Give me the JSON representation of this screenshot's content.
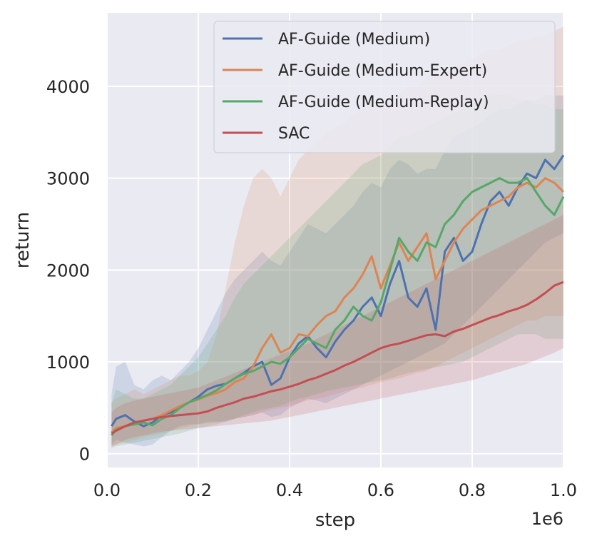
{
  "chart_data": {
    "type": "line",
    "title": "",
    "xlabel": "step",
    "ylabel": "return",
    "x_scale_label": "1e6",
    "xlim": [
      0,
      1.0
    ],
    "ylim": [
      -150,
      4800
    ],
    "xticks": [
      0.0,
      0.2,
      0.4,
      0.6,
      0.8,
      1.0
    ],
    "xtick_labels": [
      "0.0",
      "0.2",
      "0.4",
      "0.6",
      "0.8",
      "1.0"
    ],
    "yticks": [
      0,
      1000,
      2000,
      3000,
      4000
    ],
    "ytick_labels": [
      "0",
      "1000",
      "2000",
      "3000",
      "4000"
    ],
    "grid": true,
    "legend_position": "top-right",
    "colors": {
      "background": "#eaeaf2",
      "grid": "#ffffff",
      "blue": "#4c72b0",
      "orange": "#dd8452",
      "green": "#55a868",
      "red": "#c44e52"
    },
    "series": [
      {
        "name": "AF-Guide (Medium)",
        "color": "#4c72b0",
        "x": [
          0.01,
          0.02,
          0.04,
          0.06,
          0.08,
          0.1,
          0.12,
          0.14,
          0.16,
          0.18,
          0.2,
          0.22,
          0.24,
          0.26,
          0.28,
          0.3,
          0.32,
          0.34,
          0.36,
          0.38,
          0.4,
          0.42,
          0.44,
          0.46,
          0.48,
          0.5,
          0.52,
          0.54,
          0.56,
          0.58,
          0.6,
          0.62,
          0.64,
          0.66,
          0.68,
          0.7,
          0.72,
          0.74,
          0.76,
          0.78,
          0.8,
          0.82,
          0.84,
          0.86,
          0.88,
          0.9,
          0.92,
          0.94,
          0.96,
          0.98,
          1.0
        ],
        "y": [
          300,
          380,
          420,
          350,
          300,
          340,
          420,
          450,
          500,
          560,
          620,
          700,
          740,
          760,
          820,
          880,
          950,
          1000,
          750,
          820,
          1050,
          1200,
          1280,
          1150,
          1050,
          1220,
          1350,
          1450,
          1600,
          1700,
          1500,
          1850,
          2100,
          1700,
          1600,
          1800,
          1350,
          2200,
          2350,
          2100,
          2200,
          2500,
          2750,
          2850,
          2700,
          2900,
          3050,
          3000,
          3200,
          3100,
          3250
        ],
        "band_upper": [
          650,
          950,
          1000,
          750,
          700,
          800,
          850,
          800,
          900,
          1000,
          1150,
          1350,
          1550,
          1750,
          1900,
          2000,
          2100,
          2200,
          2100,
          2050,
          2200,
          2350,
          2500,
          2450,
          2400,
          2500,
          2600,
          2700,
          2850,
          2950,
          2900,
          3100,
          3200,
          3150,
          3050,
          3100,
          3100,
          3300,
          3450,
          3500,
          3550,
          3600,
          3700,
          3750,
          3750,
          3800,
          3850,
          3850,
          3900,
          3900,
          3900
        ],
        "band_lower": [
          100,
          150,
          120,
          100,
          80,
          100,
          180,
          250,
          300,
          320,
          320,
          350,
          350,
          350,
          380,
          400,
          420,
          450,
          400,
          420,
          500,
          550,
          600,
          580,
          550,
          600,
          650,
          700,
          750,
          800,
          850,
          900,
          950,
          1000,
          1050,
          1100,
          1150,
          1200,
          1300,
          1400,
          1500,
          1600,
          1700,
          1800,
          1900,
          2000,
          2100,
          2200,
          2300,
          2350,
          2400
        ]
      },
      {
        "name": "AF-Guide (Medium-Expert)",
        "color": "#dd8452",
        "x": [
          0.01,
          0.02,
          0.04,
          0.06,
          0.08,
          0.1,
          0.12,
          0.14,
          0.16,
          0.18,
          0.2,
          0.22,
          0.24,
          0.26,
          0.28,
          0.3,
          0.32,
          0.34,
          0.36,
          0.38,
          0.4,
          0.42,
          0.44,
          0.46,
          0.48,
          0.5,
          0.52,
          0.54,
          0.56,
          0.58,
          0.6,
          0.62,
          0.64,
          0.66,
          0.68,
          0.7,
          0.72,
          0.74,
          0.76,
          0.78,
          0.8,
          0.82,
          0.84,
          0.86,
          0.88,
          0.9,
          0.92,
          0.94,
          0.96,
          0.98,
          1.0
        ],
        "y": [
          230,
          280,
          300,
          330,
          360,
          380,
          420,
          470,
          520,
          560,
          590,
          630,
          660,
          700,
          780,
          820,
          950,
          1150,
          1300,
          1100,
          1150,
          1300,
          1280,
          1400,
          1500,
          1550,
          1700,
          1800,
          1950,
          2150,
          1800,
          2050,
          2300,
          2100,
          2250,
          2400,
          1900,
          2100,
          2300,
          2450,
          2550,
          2650,
          2700,
          2750,
          2800,
          2900,
          2950,
          2900,
          3000,
          2950,
          2850
        ],
        "band_upper": [
          550,
          600,
          650,
          700,
          650,
          700,
          750,
          800,
          850,
          850,
          900,
          1000,
          1300,
          1800,
          2300,
          2700,
          3000,
          3100,
          3000,
          2800,
          3000,
          3200,
          3300,
          3400,
          3500,
          3550,
          3600,
          3700,
          3750,
          3800,
          3800,
          3850,
          3900,
          4000,
          4000,
          4100,
          4100,
          4150,
          4200,
          4250,
          4300,
          4350,
          4400,
          4400,
          4450,
          4500,
          4500,
          4550,
          4550,
          4600,
          4650
        ],
        "band_lower": [
          80,
          100,
          120,
          150,
          180,
          200,
          220,
          250,
          280,
          300,
          320,
          330,
          340,
          360,
          380,
          400,
          420,
          450,
          480,
          500,
          520,
          550,
          580,
          600,
          620,
          650,
          680,
          700,
          720,
          750,
          780,
          800,
          820,
          850,
          880,
          900,
          950,
          1000,
          1050,
          1100,
          1150,
          1200,
          1250,
          1300,
          1350,
          1400,
          1450,
          1450,
          1500,
          1500,
          1500
        ]
      },
      {
        "name": "AF-Guide (Medium-Replay)",
        "color": "#55a868",
        "x": [
          0.01,
          0.02,
          0.04,
          0.06,
          0.08,
          0.1,
          0.12,
          0.14,
          0.16,
          0.18,
          0.2,
          0.22,
          0.24,
          0.26,
          0.28,
          0.3,
          0.32,
          0.34,
          0.36,
          0.38,
          0.4,
          0.42,
          0.44,
          0.46,
          0.48,
          0.5,
          0.52,
          0.54,
          0.56,
          0.58,
          0.6,
          0.62,
          0.64,
          0.66,
          0.68,
          0.7,
          0.72,
          0.74,
          0.76,
          0.78,
          0.8,
          0.82,
          0.84,
          0.86,
          0.88,
          0.9,
          0.92,
          0.94,
          0.96,
          0.98,
          1.0
        ],
        "y": [
          200,
          260,
          300,
          320,
          340,
          310,
          380,
          420,
          500,
          560,
          600,
          640,
          690,
          760,
          820,
          870,
          900,
          950,
          1000,
          980,
          1050,
          1150,
          1250,
          1200,
          1150,
          1350,
          1450,
          1600,
          1500,
          1450,
          1650,
          2000,
          2350,
          2200,
          2100,
          2300,
          2250,
          2500,
          2600,
          2750,
          2850,
          2900,
          2950,
          3000,
          2950,
          2950,
          3000,
          2850,
          2700,
          2600,
          2800
        ],
        "band_upper": [
          550,
          700,
          650,
          600,
          600,
          650,
          700,
          750,
          850,
          950,
          1050,
          1200,
          1350,
          1500,
          1700,
          1850,
          1950,
          2050,
          2150,
          2250,
          2350,
          2450,
          2550,
          2650,
          2750,
          2850,
          2950,
          3050,
          3150,
          3200,
          3250,
          3350,
          3450,
          3450,
          3500,
          3550,
          3600,
          3650,
          3700,
          3750,
          3800,
          3850,
          3900,
          3900,
          3900,
          3850,
          3850,
          3800,
          3800,
          3750,
          3750
        ],
        "band_lower": [
          60,
          80,
          100,
          120,
          140,
          160,
          180,
          200,
          220,
          250,
          280,
          300,
          320,
          350,
          380,
          420,
          450,
          480,
          500,
          520,
          560,
          600,
          620,
          650,
          680,
          700,
          720,
          740,
          760,
          780,
          800,
          820,
          850,
          880,
          900,
          920,
          940,
          960,
          980,
          1000,
          1050,
          1100,
          1150,
          1200,
          1250,
          1300,
          1300,
          1300,
          1250,
          1250,
          1250
        ]
      },
      {
        "name": "SAC",
        "color": "#c44e52",
        "x": [
          0.01,
          0.02,
          0.04,
          0.06,
          0.08,
          0.1,
          0.12,
          0.14,
          0.16,
          0.18,
          0.2,
          0.22,
          0.24,
          0.26,
          0.28,
          0.3,
          0.32,
          0.34,
          0.36,
          0.38,
          0.4,
          0.42,
          0.44,
          0.46,
          0.48,
          0.5,
          0.52,
          0.54,
          0.56,
          0.58,
          0.6,
          0.62,
          0.64,
          0.66,
          0.68,
          0.7,
          0.72,
          0.74,
          0.76,
          0.78,
          0.8,
          0.82,
          0.84,
          0.86,
          0.88,
          0.9,
          0.92,
          0.94,
          0.96,
          0.98,
          1.0
        ],
        "y": [
          220,
          250,
          300,
          340,
          360,
          380,
          400,
          410,
          420,
          430,
          440,
          460,
          500,
          530,
          560,
          600,
          620,
          650,
          680,
          700,
          730,
          760,
          800,
          830,
          870,
          910,
          960,
          1000,
          1050,
          1100,
          1150,
          1180,
          1200,
          1230,
          1260,
          1290,
          1300,
          1280,
          1330,
          1360,
          1400,
          1440,
          1480,
          1510,
          1550,
          1580,
          1620,
          1680,
          1750,
          1830,
          1870
        ],
        "band_upper": [
          450,
          500,
          550,
          580,
          600,
          620,
          640,
          660,
          680,
          700,
          720,
          760,
          800,
          840,
          880,
          920,
          960,
          1000,
          1040,
          1080,
          1120,
          1160,
          1200,
          1250,
          1300,
          1350,
          1400,
          1450,
          1500,
          1550,
          1600,
          1650,
          1700,
          1750,
          1800,
          1850,
          1900,
          1950,
          2000,
          2050,
          2100,
          2150,
          2200,
          2250,
          2300,
          2350,
          2400,
          2450,
          2500,
          2550,
          2600
        ],
        "band_lower": [
          80,
          100,
          150,
          180,
          200,
          220,
          240,
          250,
          260,
          270,
          280,
          290,
          300,
          310,
          320,
          330,
          340,
          350,
          360,
          380,
          400,
          420,
          440,
          460,
          480,
          500,
          520,
          540,
          560,
          580,
          600,
          620,
          640,
          660,
          680,
          700,
          720,
          740,
          760,
          780,
          800,
          830,
          860,
          890,
          920,
          950,
          980,
          1020,
          1060,
          1100,
          1150
        ]
      }
    ]
  }
}
